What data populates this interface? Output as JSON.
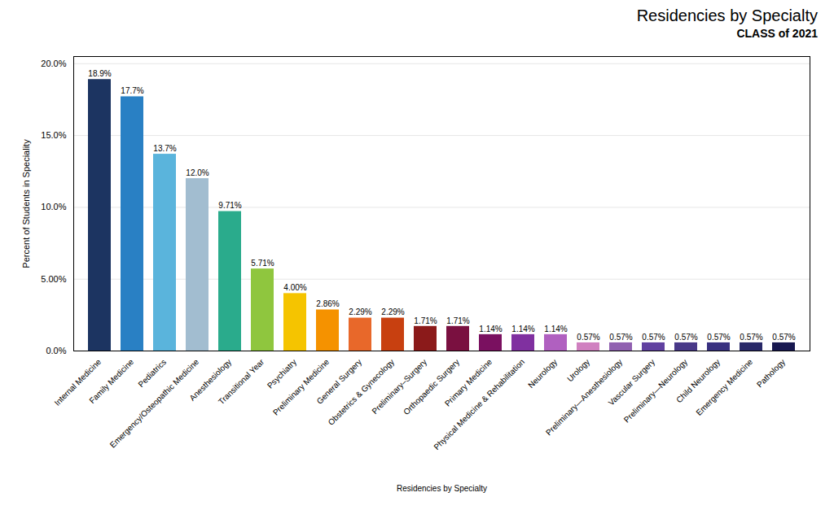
{
  "chart_data": {
    "type": "bar",
    "title": "Residencies by Specialty",
    "subtitle": "CLASS of 2021",
    "xlabel": "Residencies by Specialty",
    "ylabel": "Percent of Students in Speciality",
    "categories": [
      "Internal Medicine",
      "Family Medicine",
      "Pediatrics",
      "Emergency/Osteopathic Medicine",
      "Anesthesiology",
      "Transitional Year",
      "Psychiatry",
      "Preliminary Medicine",
      "General Surgery",
      "Obstetrics & Gynecology",
      "Preliminary–Surgery",
      "Orthopaedic Surgery",
      "Primary Medicine",
      "Physical Medicine & Rehabilitation",
      "Neurology",
      "Urology",
      "Preliminary—Anesthesiology",
      "Vascular Surgery",
      "Preliminary—Neurology",
      "Child Neurology",
      "Emergency Medicine",
      "Pathology"
    ],
    "values": [
      18.9,
      17.7,
      13.7,
      12.0,
      9.71,
      5.71,
      4.0,
      2.86,
      2.29,
      2.29,
      1.71,
      1.71,
      1.14,
      1.14,
      1.14,
      0.57,
      0.57,
      0.57,
      0.57,
      0.57,
      0.57,
      0.57
    ],
    "value_labels": [
      "18.9%",
      "17.7%",
      "13.7%",
      "12.0%",
      "9.71%",
      "5.71%",
      "4.00%",
      "2.86%",
      "2.29%",
      "2.29%",
      "1.71%",
      "1.71%",
      "1.14%",
      "1.14%",
      "1.14%",
      "0.57%",
      "0.57%",
      "0.57%",
      "0.57%",
      "0.57%",
      "0.57%",
      "0.57%"
    ],
    "data_labels": true,
    "colors": [
      "#1c3461",
      "#2980c4",
      "#5ab4dc",
      "#a2bdd0",
      "#2aab8c",
      "#8fc63e",
      "#f5c400",
      "#f59200",
      "#e8682a",
      "#c84010",
      "#8b1a1a",
      "#7a1040",
      "#7a1060",
      "#8030a0",
      "#b060c0",
      "#d080c0",
      "#9060b0",
      "#6040a0",
      "#483888",
      "#383080",
      "#282868",
      "#181850"
    ],
    "ylim": [
      0,
      20.5
    ],
    "yticks": [
      {
        "value": 0.0,
        "label": "0.0%"
      },
      {
        "value": 5.0,
        "label": "5.00%"
      },
      {
        "value": 10.0,
        "label": "10.0%"
      },
      {
        "value": 15.0,
        "label": "15.0%"
      },
      {
        "value": 20.0,
        "label": "20.0%"
      }
    ],
    "grid": true
  }
}
